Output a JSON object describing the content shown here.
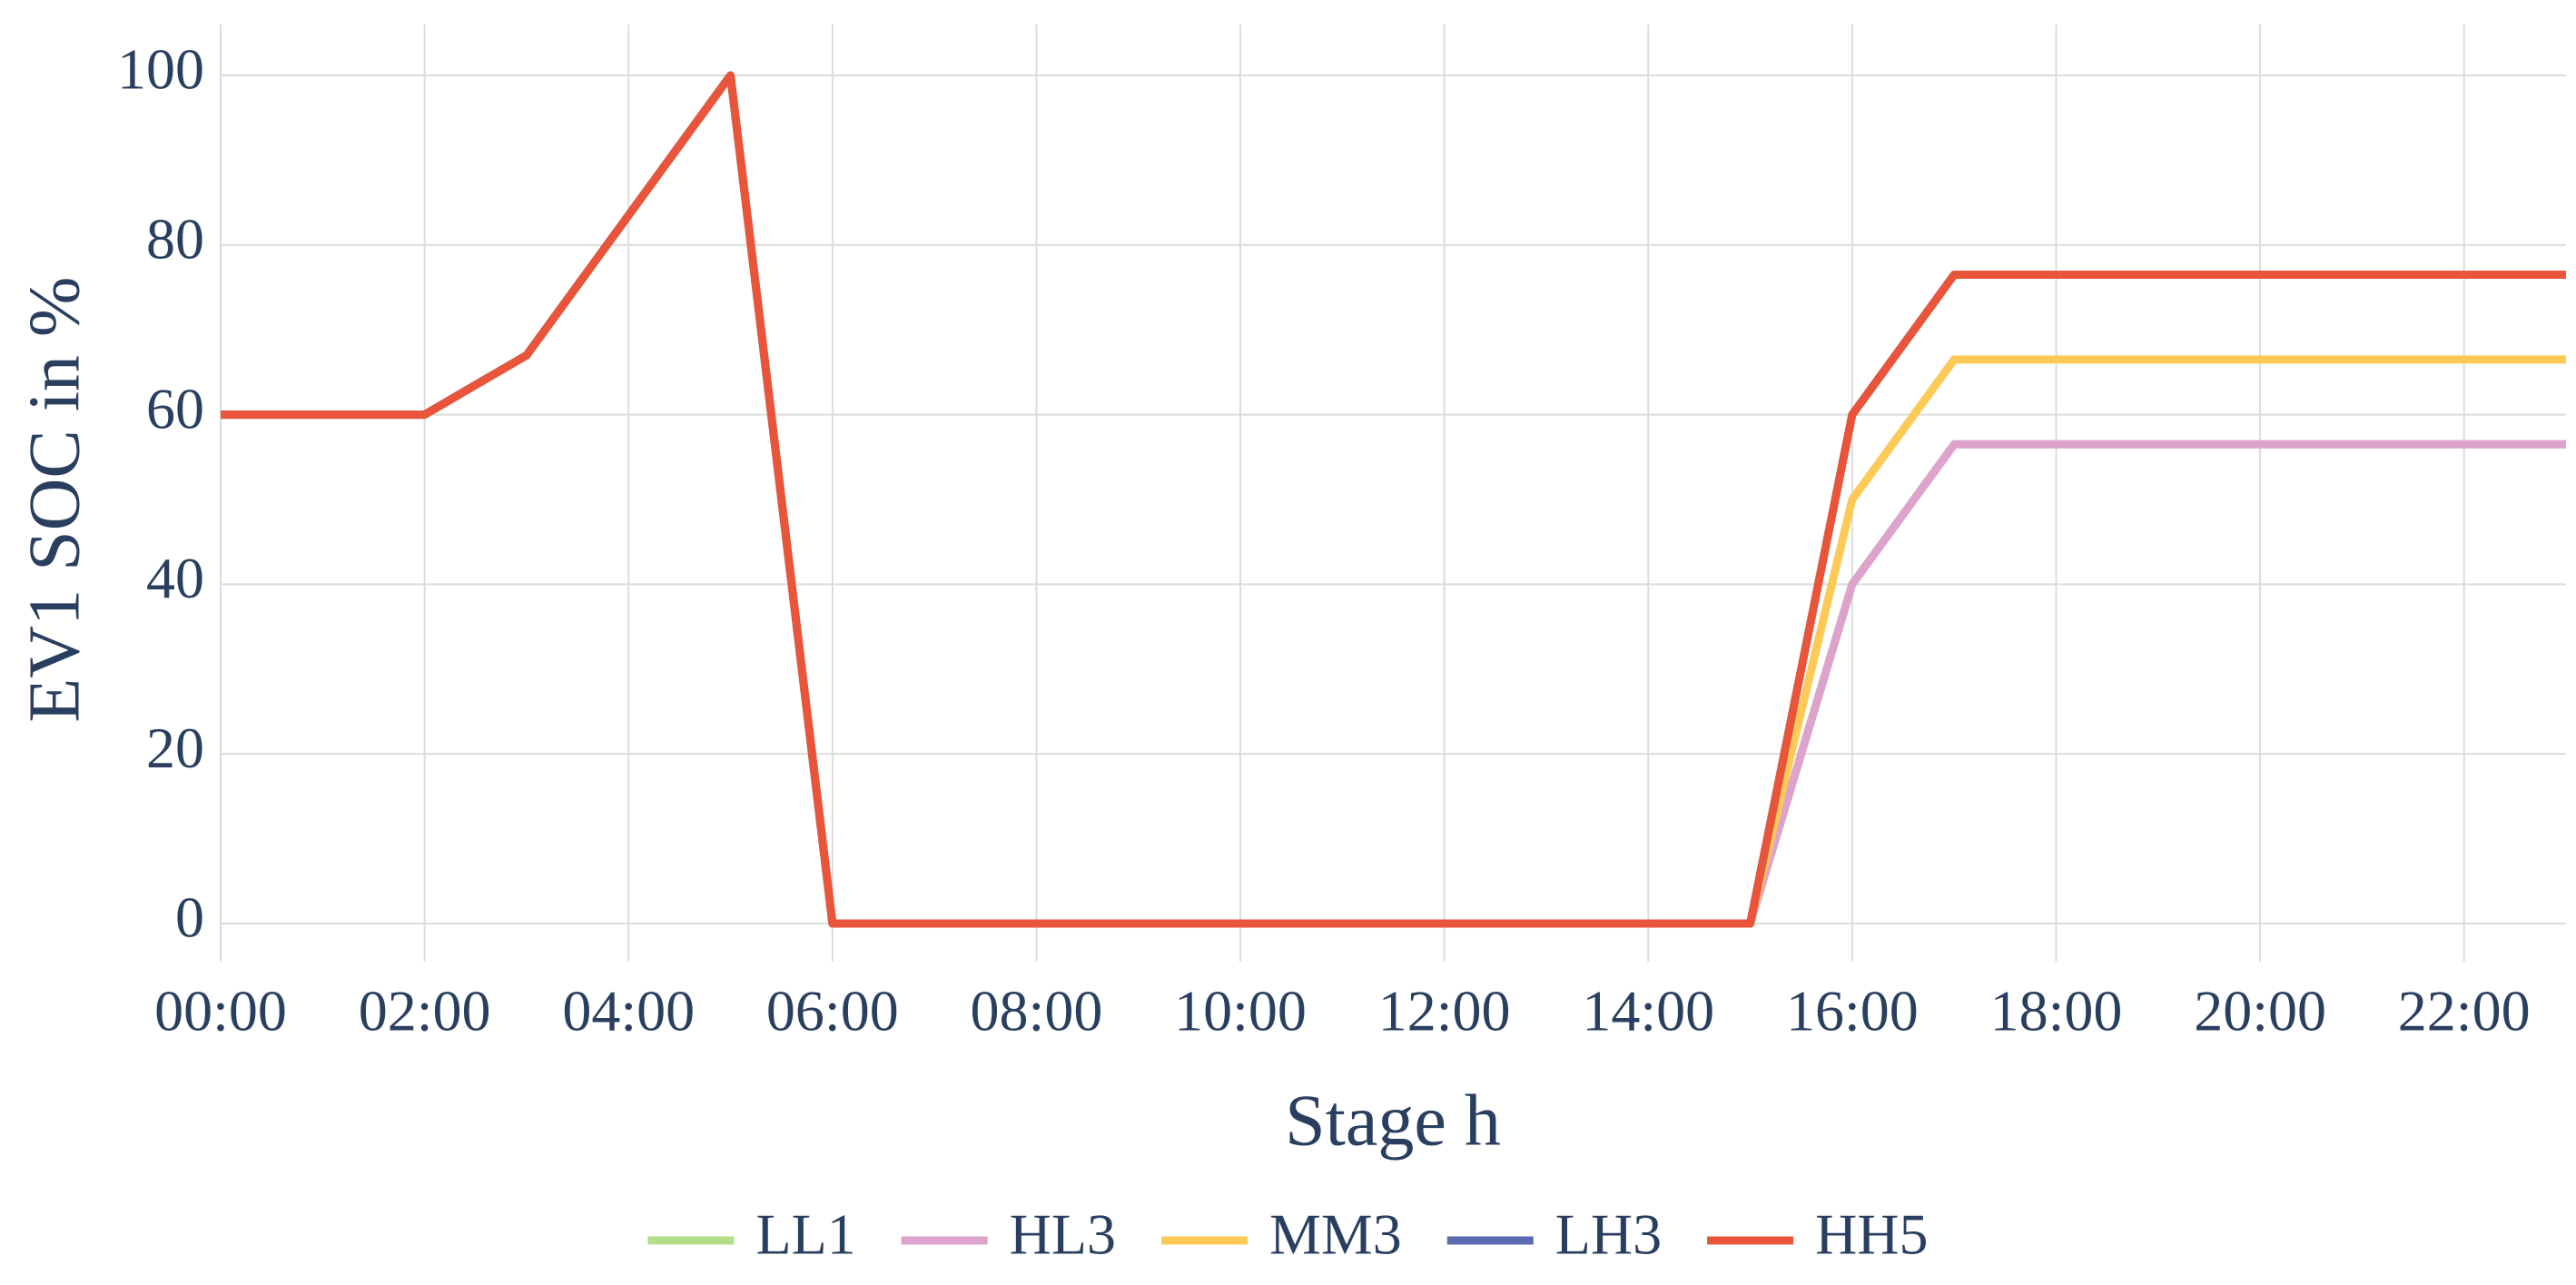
{
  "chart_data": {
    "type": "line",
    "x_label": "Stage h",
    "y_label": "EV1 SOC in %",
    "categories": [
      "00:00",
      null,
      "02:00",
      null,
      "04:00",
      null,
      "06:00",
      null,
      "08:00",
      null,
      "10:00",
      null,
      "12:00",
      null,
      "14:00",
      null,
      "16:00",
      null,
      "18:00",
      null,
      "20:00",
      null,
      "22:00",
      null
    ],
    "series": [
      {
        "name": "LL1",
        "color": "#b3de8a",
        "values": [
          60,
          60,
          60,
          67,
          83.5,
          100,
          0,
          0,
          0,
          0,
          0,
          0,
          0,
          0,
          0,
          0,
          40,
          56.5,
          56.5,
          56.5,
          56.5,
          56.5,
          56.5,
          56.5
        ]
      },
      {
        "name": "HL3",
        "color": "#dda3cc",
        "values": [
          60,
          60,
          60,
          67,
          83.5,
          100,
          0,
          0,
          0,
          0,
          0,
          0,
          0,
          0,
          0,
          0,
          40,
          56.5,
          56.5,
          56.5,
          56.5,
          56.5,
          56.5,
          56.5
        ]
      },
      {
        "name": "MM3",
        "color": "#fdca58",
        "values": [
          60,
          60,
          60,
          67,
          83.5,
          100,
          0,
          0,
          0,
          0,
          0,
          0,
          0,
          0,
          0,
          0,
          50,
          66.5,
          66.5,
          66.5,
          66.5,
          66.5,
          66.5,
          66.5
        ]
      },
      {
        "name": "LH3",
        "color": "#5a6bb2",
        "values": [
          60,
          60,
          60,
          67,
          83.5,
          100,
          0,
          0,
          0,
          0,
          0,
          0,
          0,
          0,
          0,
          0,
          60,
          76.5,
          76.5,
          76.5,
          76.5,
          76.5,
          76.5,
          76.5
        ]
      },
      {
        "name": "HH5",
        "color": "#e9553a",
        "values": [
          60,
          60,
          60,
          67,
          83.5,
          100,
          0,
          0,
          0,
          0,
          0,
          0,
          0,
          0,
          0,
          0,
          60,
          76.5,
          76.5,
          76.5,
          76.5,
          76.5,
          76.5,
          76.5
        ]
      }
    ],
    "ylim": [
      -4.5,
      106
    ],
    "yticks": [
      0,
      20,
      40,
      60,
      80,
      100
    ],
    "grid": true,
    "legend": "bottom"
  }
}
